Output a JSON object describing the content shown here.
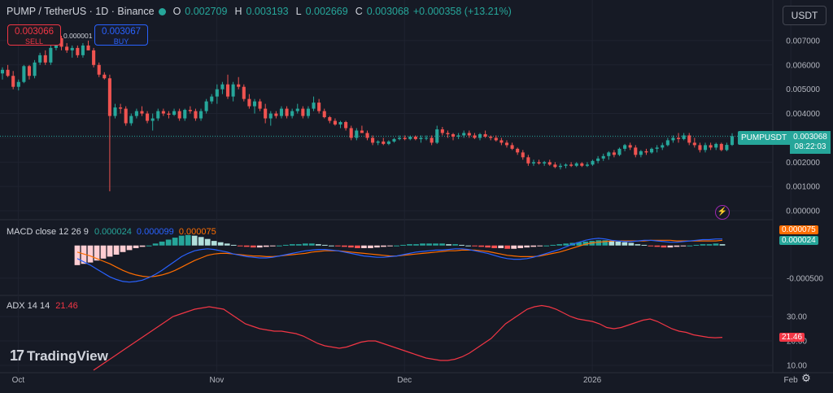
{
  "header": {
    "symbol_line": "PUMP / TetherUS · 1D · Binance",
    "o_label": "O",
    "o_value": "0.002709",
    "h_label": "H",
    "h_value": "0.003193",
    "l_label": "L",
    "l_value": "0.002669",
    "c_label": "C",
    "c_value": "0.003068",
    "change": "+0.000358 (+13.21%)"
  },
  "trade": {
    "sell_price": "0.003066",
    "sell_label": "SELL",
    "buy_price": "0.003067",
    "buy_label": "BUY",
    "spread": "0.000001"
  },
  "currency_button": "USDT",
  "last_price": {
    "symbol": "PUMPUSDT",
    "price": "0.003068",
    "countdown": "08:22:03"
  },
  "macd": {
    "title": "MACD close 12 26 9",
    "hist_value": "0.000024",
    "macd_value": "0.000099",
    "signal_value": "0.000075",
    "badge_signal": "0.000075",
    "badge_hist": "0.000024"
  },
  "adx": {
    "title": "ADX 14 14",
    "value": "21.46",
    "badge": "21.46"
  },
  "logo": "TradingView",
  "colors": {
    "up": "#26a69a",
    "down": "#ef5350",
    "macd": "#2962ff",
    "signal": "#ff6d00",
    "adx": "#f23645",
    "background": "#161a25"
  },
  "icons": {
    "bolt": "lightning-icon",
    "settings": "gear-icon"
  },
  "chart_data": {
    "type": "candlestick",
    "price_axis": {
      "ticks": [
        "0.007000",
        "0.006000",
        "0.005000",
        "0.004000",
        "0.003000",
        "0.002000",
        "0.001000",
        "0.000000"
      ],
      "range": [
        -0.0003,
        0.0075
      ]
    },
    "macd_axis": {
      "ticks": [
        "-0.000500"
      ],
      "range": [
        -0.00075,
        0.00037
      ]
    },
    "adx_axis": {
      "ticks": [
        "30.00",
        "20.00",
        "10.00"
      ],
      "range": [
        8,
        38
      ]
    },
    "x_ticks": [
      "Oct",
      "Nov",
      "Dec",
      "2026",
      "Feb"
    ],
    "x_tick_index": [
      9,
      46,
      81,
      116,
      153
    ],
    "ohlc": [
      [
        0.00565,
        0.0059,
        0.0054,
        0.0058
      ],
      [
        0.0058,
        0.006,
        0.0055,
        0.00555
      ],
      [
        0.00555,
        0.00575,
        0.005,
        0.0051
      ],
      [
        0.0051,
        0.0054,
        0.00495,
        0.0053
      ],
      [
        0.0053,
        0.006,
        0.00525,
        0.00595
      ],
      [
        0.00595,
        0.006,
        0.0054,
        0.00555
      ],
      [
        0.00555,
        0.0062,
        0.00545,
        0.0061
      ],
      [
        0.0061,
        0.0065,
        0.006,
        0.0064
      ],
      [
        0.0064,
        0.0066,
        0.006,
        0.0061
      ],
      [
        0.0061,
        0.0068,
        0.006,
        0.0067
      ],
      [
        0.0067,
        0.0072,
        0.0066,
        0.0071
      ],
      [
        0.0071,
        0.0072,
        0.0066,
        0.00675
      ],
      [
        0.00675,
        0.0069,
        0.0065,
        0.0066
      ],
      [
        0.0066,
        0.0068,
        0.0063,
        0.0067
      ],
      [
        0.0067,
        0.0068,
        0.0063,
        0.0064
      ],
      [
        0.0064,
        0.0069,
        0.0063,
        0.0068
      ],
      [
        0.0068,
        0.007,
        0.0066,
        0.0066
      ],
      [
        0.0066,
        0.0067,
        0.0059,
        0.006
      ],
      [
        0.006,
        0.0061,
        0.0055,
        0.0056
      ],
      [
        0.0056,
        0.0057,
        0.0054,
        0.00545
      ],
      [
        0.00545,
        0.0056,
        0.0008,
        0.0039
      ],
      [
        0.0039,
        0.0044,
        0.0038,
        0.00425
      ],
      [
        0.00425,
        0.0044,
        0.004,
        0.0042
      ],
      [
        0.0042,
        0.0043,
        0.0035,
        0.0036
      ],
      [
        0.0036,
        0.004,
        0.0035,
        0.0039
      ],
      [
        0.0039,
        0.0042,
        0.0038,
        0.0041
      ],
      [
        0.0041,
        0.0043,
        0.0039,
        0.004
      ],
      [
        0.004,
        0.0041,
        0.0036,
        0.0037
      ],
      [
        0.0037,
        0.004,
        0.0033,
        0.0038
      ],
      [
        0.0038,
        0.0042,
        0.0037,
        0.0041
      ],
      [
        0.0041,
        0.0042,
        0.0039,
        0.004
      ],
      [
        0.004,
        0.0041,
        0.0038,
        0.00395
      ],
      [
        0.00395,
        0.0042,
        0.0039,
        0.0041
      ],
      [
        0.0041,
        0.0042,
        0.0037,
        0.0038
      ],
      [
        0.0038,
        0.0042,
        0.0037,
        0.00415
      ],
      [
        0.00415,
        0.0043,
        0.004,
        0.0041
      ],
      [
        0.0041,
        0.0042,
        0.0037,
        0.0038
      ],
      [
        0.0038,
        0.0042,
        0.0037,
        0.0041
      ],
      [
        0.0041,
        0.0046,
        0.004,
        0.0045
      ],
      [
        0.0045,
        0.0048,
        0.0044,
        0.0047
      ],
      [
        0.0047,
        0.0052,
        0.0044,
        0.005
      ],
      [
        0.005,
        0.0053,
        0.0048,
        0.0052
      ],
      [
        0.0052,
        0.0056,
        0.0046,
        0.0047
      ],
      [
        0.0047,
        0.0053,
        0.0045,
        0.0052
      ],
      [
        0.0052,
        0.0055,
        0.005,
        0.0051
      ],
      [
        0.0051,
        0.0052,
        0.0045,
        0.0046
      ],
      [
        0.0046,
        0.0048,
        0.0042,
        0.0043
      ],
      [
        0.0043,
        0.0046,
        0.004,
        0.0045
      ],
      [
        0.0045,
        0.0046,
        0.0041,
        0.0042
      ],
      [
        0.0042,
        0.0044,
        0.0036,
        0.0038
      ],
      [
        0.0038,
        0.0041,
        0.0035,
        0.004
      ],
      [
        0.004,
        0.0041,
        0.0038,
        0.0039
      ],
      [
        0.0039,
        0.0043,
        0.0038,
        0.0042
      ],
      [
        0.0042,
        0.0043,
        0.0038,
        0.0039
      ],
      [
        0.0039,
        0.0042,
        0.0038,
        0.0041
      ],
      [
        0.0041,
        0.0044,
        0.004,
        0.0042
      ],
      [
        0.0042,
        0.0043,
        0.0038,
        0.0039
      ],
      [
        0.0039,
        0.0043,
        0.0038,
        0.0042
      ],
      [
        0.0042,
        0.0047,
        0.0041,
        0.00445
      ],
      [
        0.00445,
        0.0046,
        0.004,
        0.0041
      ],
      [
        0.0041,
        0.0042,
        0.0038,
        0.00385
      ],
      [
        0.00385,
        0.0039,
        0.0036,
        0.0037
      ],
      [
        0.0037,
        0.0038,
        0.0035,
        0.00355
      ],
      [
        0.00355,
        0.0037,
        0.0034,
        0.00365
      ],
      [
        0.00365,
        0.0037,
        0.0033,
        0.0034
      ],
      [
        0.0034,
        0.0035,
        0.0029,
        0.003
      ],
      [
        0.003,
        0.0034,
        0.0029,
        0.0033
      ],
      [
        0.0033,
        0.0035,
        0.0032,
        0.0032
      ],
      [
        0.0032,
        0.0033,
        0.0029,
        0.003
      ],
      [
        0.003,
        0.0031,
        0.0027,
        0.0028
      ],
      [
        0.0028,
        0.0029,
        0.0027,
        0.00285
      ],
      [
        0.00285,
        0.003,
        0.0027,
        0.00275
      ],
      [
        0.00275,
        0.0029,
        0.0027,
        0.00285
      ],
      [
        0.00285,
        0.003,
        0.0028,
        0.00295
      ],
      [
        0.00295,
        0.0031,
        0.0029,
        0.003
      ],
      [
        0.003,
        0.0031,
        0.0029,
        0.00295
      ],
      [
        0.00295,
        0.0031,
        0.0029,
        0.00305
      ],
      [
        0.00305,
        0.0031,
        0.0029,
        0.00295
      ],
      [
        0.00295,
        0.0031,
        0.0028,
        0.003
      ],
      [
        0.003,
        0.0031,
        0.0029,
        0.003
      ],
      [
        0.003,
        0.0031,
        0.0027,
        0.0028
      ],
      [
        0.0028,
        0.0035,
        0.00275,
        0.00335
      ],
      [
        0.00335,
        0.00345,
        0.0031,
        0.0032
      ],
      [
        0.0032,
        0.0033,
        0.003,
        0.00315
      ],
      [
        0.00315,
        0.0032,
        0.0029,
        0.00305
      ],
      [
        0.00305,
        0.0032,
        0.00295,
        0.0031
      ],
      [
        0.0031,
        0.0033,
        0.003,
        0.0032
      ],
      [
        0.0032,
        0.0033,
        0.003,
        0.0031
      ],
      [
        0.0031,
        0.0032,
        0.00295,
        0.003
      ],
      [
        0.003,
        0.0032,
        0.0029,
        0.00315
      ],
      [
        0.00315,
        0.0033,
        0.003,
        0.00305
      ],
      [
        0.00305,
        0.0031,
        0.0029,
        0.003
      ],
      [
        0.003,
        0.0031,
        0.00285,
        0.0029
      ],
      [
        0.0029,
        0.003,
        0.0027,
        0.0028
      ],
      [
        0.0028,
        0.0029,
        0.0026,
        0.0027
      ],
      [
        0.0027,
        0.0028,
        0.0025,
        0.00255
      ],
      [
        0.00255,
        0.0026,
        0.0023,
        0.0024
      ],
      [
        0.0024,
        0.0025,
        0.0021,
        0.0022
      ],
      [
        0.0022,
        0.0023,
        0.00185,
        0.00195
      ],
      [
        0.00195,
        0.0021,
        0.00185,
        0.002
      ],
      [
        0.002,
        0.0021,
        0.0019,
        0.00195
      ],
      [
        0.00195,
        0.00205,
        0.00185,
        0.002
      ],
      [
        0.002,
        0.0021,
        0.00185,
        0.0019
      ],
      [
        0.0019,
        0.002,
        0.00175,
        0.0018
      ],
      [
        0.0018,
        0.00195,
        0.0017,
        0.00185
      ],
      [
        0.00185,
        0.00195,
        0.00175,
        0.0019
      ],
      [
        0.0019,
        0.002,
        0.0018,
        0.00185
      ],
      [
        0.00185,
        0.002,
        0.0018,
        0.00195
      ],
      [
        0.00195,
        0.002,
        0.0018,
        0.00185
      ],
      [
        0.00185,
        0.002,
        0.0018,
        0.0019
      ],
      [
        0.0019,
        0.0021,
        0.00185,
        0.00205
      ],
      [
        0.00205,
        0.00225,
        0.00195,
        0.00215
      ],
      [
        0.00215,
        0.00235,
        0.00205,
        0.00225
      ],
      [
        0.00225,
        0.00245,
        0.0021,
        0.0024
      ],
      [
        0.0024,
        0.0025,
        0.0022,
        0.0023
      ],
      [
        0.0023,
        0.0026,
        0.00225,
        0.00255
      ],
      [
        0.00255,
        0.00275,
        0.00245,
        0.0027
      ],
      [
        0.0027,
        0.0028,
        0.0025,
        0.0026
      ],
      [
        0.0026,
        0.0027,
        0.0022,
        0.0023
      ],
      [
        0.0023,
        0.0025,
        0.0022,
        0.00245
      ],
      [
        0.00245,
        0.00255,
        0.0023,
        0.0024
      ],
      [
        0.0024,
        0.0026,
        0.00235,
        0.00255
      ],
      [
        0.00255,
        0.0027,
        0.0024,
        0.0026
      ],
      [
        0.0026,
        0.0028,
        0.0025,
        0.0027
      ],
      [
        0.0027,
        0.003,
        0.00265,
        0.0029
      ],
      [
        0.0029,
        0.0031,
        0.0028,
        0.003
      ],
      [
        0.003,
        0.0032,
        0.0028,
        0.00295
      ],
      [
        0.00295,
        0.0032,
        0.0029,
        0.0031
      ],
      [
        0.0031,
        0.0032,
        0.0027,
        0.0028
      ],
      [
        0.0028,
        0.003,
        0.0026,
        0.0027
      ],
      [
        0.0027,
        0.0028,
        0.0024,
        0.0025
      ],
      [
        0.0025,
        0.0028,
        0.0024,
        0.0027
      ],
      [
        0.0027,
        0.0028,
        0.0025,
        0.0026
      ],
      [
        0.0026,
        0.0028,
        0.0025,
        0.00275
      ],
      [
        0.00275,
        0.0028,
        0.00245,
        0.0025
      ],
      [
        0.0025,
        0.0028,
        0.00245,
        0.00271
      ],
      [
        0.00271,
        0.00319,
        0.00267,
        0.00307
      ]
    ],
    "macd_hist": [
      -0.0003,
      -0.00028,
      -0.00026,
      -0.00023,
      -0.0002,
      -0.00017,
      -0.00014,
      -0.0001,
      -7e-05,
      -4e-05,
      -2e-05,
      0.0,
      3e-05,
      6e-05,
      9e-05,
      0.00012,
      0.00015,
      0.00016,
      0.00015,
      0.00013,
      0.0001,
      7e-05,
      5e-05,
      3e-05,
      1e-05,
      -1e-05,
      -2e-05,
      -3e-05,
      -3e-05,
      -2e-05,
      -1e-05,
      0.0,
      1e-05,
      2e-05,
      2e-05,
      3e-05,
      3e-05,
      2e-05,
      1e-05,
      0.0,
      -1e-05,
      -2e-05,
      -3e-05,
      -4e-05,
      -4e-05,
      -4e-05,
      -3e-05,
      -2e-05,
      -1e-05,
      0.0,
      1e-05,
      2e-05,
      2e-05,
      3e-05,
      3e-05,
      3e-05,
      3e-05,
      2e-05,
      2e-05,
      1e-05,
      0.0,
      -1e-05,
      -2e-05,
      -3e-05,
      -4e-05,
      -4e-05,
      -5e-05,
      -5e-05,
      -4e-05,
      -3e-05,
      -2e-05,
      -1e-05,
      0.0,
      1e-05,
      2e-05,
      3e-05,
      4e-05,
      5e-05,
      6e-05,
      7e-05,
      8e-05,
      8e-05,
      7e-05,
      6e-05,
      5e-05,
      4e-05,
      2e-05,
      1e-05,
      -1e-05,
      -2e-05,
      -3e-05,
      -3e-05,
      -2e-05,
      -1e-05,
      0.0,
      1e-05,
      2e-05,
      2e-05,
      3e-05,
      2e-05
    ],
    "macd_line": [
      -0.0002,
      -0.00025,
      -0.0003,
      -0.00036,
      -0.00042,
      -0.00048,
      -0.00052,
      -0.00055,
      -0.00056,
      -0.00055,
      -0.00053,
      -0.00049,
      -0.00044,
      -0.00038,
      -0.00031,
      -0.00024,
      -0.00017,
      -0.00012,
      -8e-05,
      -6e-05,
      -5e-05,
      -6e-05,
      -8e-05,
      -0.0001,
      -0.00013,
      -0.00015,
      -0.00017,
      -0.00018,
      -0.00019,
      -0.00019,
      -0.00018,
      -0.00016,
      -0.00014,
      -0.00012,
      -0.0001,
      -8e-05,
      -7e-05,
      -6e-05,
      -6e-05,
      -7e-05,
      -8e-05,
      -0.0001,
      -0.00012,
      -0.00014,
      -0.00016,
      -0.00017,
      -0.00018,
      -0.00018,
      -0.00017,
      -0.00016,
      -0.00014,
      -0.00012,
      -0.0001,
      -9e-05,
      -8e-05,
      -7e-05,
      -7e-05,
      -6e-05,
      -5e-05,
      -5e-05,
      -6e-05,
      -8e-05,
      -0.0001,
      -0.00012,
      -0.00015,
      -0.00018,
      -0.0002,
      -0.00021,
      -0.00021,
      -0.0002,
      -0.00018,
      -0.00015,
      -0.00012,
      -9e-05,
      -6e-05,
      -2e-05,
      2e-05,
      5e-05,
      8e-05,
      0.0001,
      0.00011,
      0.0001,
      8e-05,
      7e-05,
      6e-05,
      6e-05,
      7e-05,
      8e-05,
      8e-05,
      7e-05,
      6e-05,
      5e-05,
      5e-05,
      6e-05,
      7e-05,
      8e-05,
      9e-05,
      9e-05,
      0.0001,
      0.0001
    ],
    "signal_line": [
      -0.0001,
      -0.00013,
      -0.00016,
      -0.0002,
      -0.00024,
      -0.00028,
      -0.00033,
      -0.00038,
      -0.00042,
      -0.00045,
      -0.00047,
      -0.00048,
      -0.00047,
      -0.00045,
      -0.00042,
      -0.00038,
      -0.00033,
      -0.00028,
      -0.00023,
      -0.00019,
      -0.00015,
      -0.00013,
      -0.00012,
      -0.00012,
      -0.00013,
      -0.00014,
      -0.00015,
      -0.00016,
      -0.00016,
      -0.00017,
      -0.00017,
      -0.00016,
      -0.00015,
      -0.00014,
      -0.00013,
      -0.00012,
      -0.0001,
      -9e-05,
      -8e-05,
      -8e-05,
      -8e-05,
      -9e-05,
      -0.0001,
      -0.00011,
      -0.00012,
      -0.00013,
      -0.00014,
      -0.00015,
      -0.00016,
      -0.00016,
      -0.00015,
      -0.00014,
      -0.00013,
      -0.00012,
      -0.00011,
      -0.0001,
      -9e-05,
      -8e-05,
      -8e-05,
      -7e-05,
      -7e-05,
      -7e-05,
      -8e-05,
      -9e-05,
      -0.00011,
      -0.00013,
      -0.00015,
      -0.00016,
      -0.00017,
      -0.00017,
      -0.00017,
      -0.00016,
      -0.00014,
      -0.00012,
      -0.0001,
      -7e-05,
      -4e-05,
      -1e-05,
      2e-05,
      4e-05,
      5e-05,
      6e-05,
      7e-05,
      7e-05,
      7e-05,
      7e-05,
      7e-05,
      7e-05,
      8e-05,
      8e-05,
      8e-05,
      8e-05,
      7e-05,
      7e-05,
      7e-05,
      7e-05,
      7e-05,
      7e-05,
      7e-05,
      8e-05
    ],
    "adx_line": [
      8,
      10,
      12,
      14,
      16,
      18,
      20,
      22,
      24,
      26,
      28,
      30,
      31,
      32,
      33,
      33.5,
      34,
      33.5,
      33,
      31,
      29,
      27,
      26,
      25,
      24.5,
      24,
      24,
      23.5,
      23,
      22,
      20.5,
      19,
      18,
      17.5,
      17,
      17.5,
      18.5,
      19.5,
      20,
      20,
      19,
      18,
      17,
      16,
      15,
      14,
      13,
      12.5,
      12,
      12,
      12.5,
      13.5,
      15,
      17,
      19,
      21,
      24,
      27,
      29,
      31,
      33,
      34,
      34.5,
      34,
      33,
      31.5,
      30,
      29,
      28.5,
      28,
      27,
      25.5,
      25,
      25.5,
      26.5,
      27.5,
      28.5,
      29,
      28,
      26.5,
      25,
      24,
      23.5,
      22.5,
      22,
      21.5,
      21.3,
      21.46
    ]
  }
}
